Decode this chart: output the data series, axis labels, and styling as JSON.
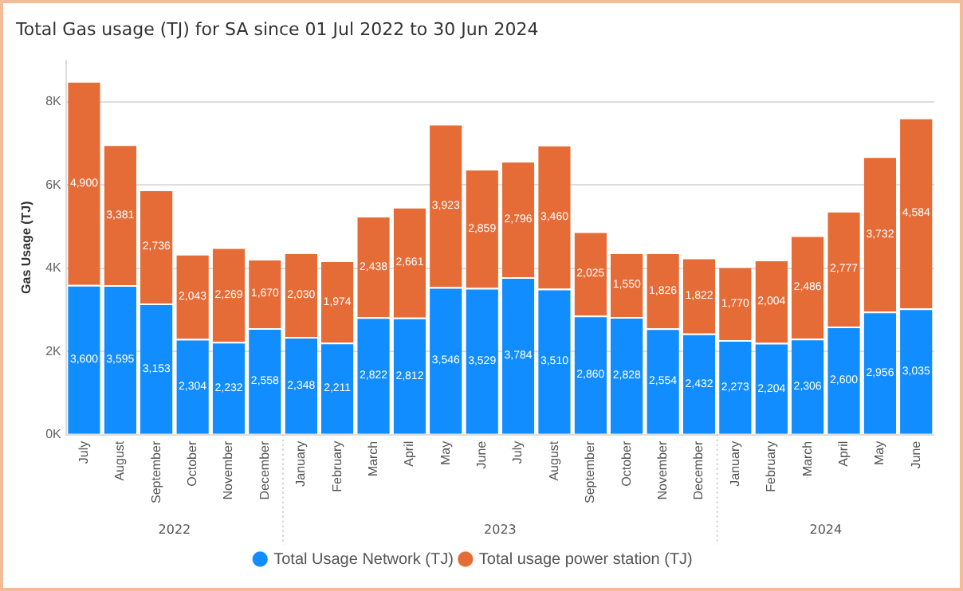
{
  "chart_data": {
    "type": "bar",
    "title": "Total Gas usage (TJ) for SA since 01 Jul 2022 to 30 Jun 2024",
    "ylabel": "Gas Usage (TJ)",
    "categories": [
      "July",
      "August",
      "September",
      "October",
      "November",
      "December",
      "January",
      "February",
      "March",
      "April",
      "May",
      "June",
      "July",
      "August",
      "September",
      "October",
      "November",
      "December",
      "January",
      "February",
      "March",
      "April",
      "May",
      "June"
    ],
    "series": [
      {
        "name": "Total Usage Network (TJ)",
        "color": "#118dff",
        "values": [
          3600,
          3595,
          3153,
          2304,
          2232,
          2558,
          2348,
          2211,
          2822,
          2812,
          3546,
          3529,
          3784,
          3510,
          2860,
          2828,
          2554,
          2432,
          2273,
          2204,
          2306,
          2600,
          2956,
          3035
        ],
        "value_labels": [
          "3,600",
          "3,595",
          "3,153",
          "2,304",
          "2,232",
          "2,558",
          "2,348",
          "2,211",
          "2,822",
          "2,812",
          "3,546",
          "3,529",
          "3,784",
          "3,510",
          "2,860",
          "2,828",
          "2,554",
          "2,432",
          "2,273",
          "2,204",
          "2,306",
          "2,600",
          "2,956",
          "3,035"
        ]
      },
      {
        "name": "Total usage power station (TJ)",
        "color": "#e66c37",
        "values": [
          4900,
          3381,
          2736,
          2043,
          2269,
          1670,
          2030,
          1974,
          2438,
          2661,
          3923,
          2859,
          2796,
          3460,
          2025,
          1550,
          1826,
          1822,
          1770,
          2004,
          2486,
          2777,
          3732,
          4584
        ],
        "value_labels": [
          "4,900",
          "3,381",
          "2,736",
          "2,043",
          "2,269",
          "1,670",
          "2,030",
          "1,974",
          "2,438",
          "2,661",
          "3,923",
          "2,859",
          "2,796",
          "3,460",
          "2,025",
          "1,550",
          "1,826",
          "1,822",
          "1,770",
          "2,004",
          "2,486",
          "2,777",
          "3,732",
          "4,584"
        ]
      }
    ],
    "stacked": true,
    "ylim": [
      0,
      9000
    ],
    "yticks": [
      {
        "value": 0,
        "label": "0K"
      },
      {
        "value": 2000,
        "label": "2K"
      },
      {
        "value": 4000,
        "label": "4K"
      },
      {
        "value": 6000,
        "label": "6K"
      },
      {
        "value": 8000,
        "label": "8K"
      }
    ],
    "grid": "y",
    "legend": "bottom",
    "annotations": [
      "2022",
      "2023",
      "2024"
    ]
  }
}
